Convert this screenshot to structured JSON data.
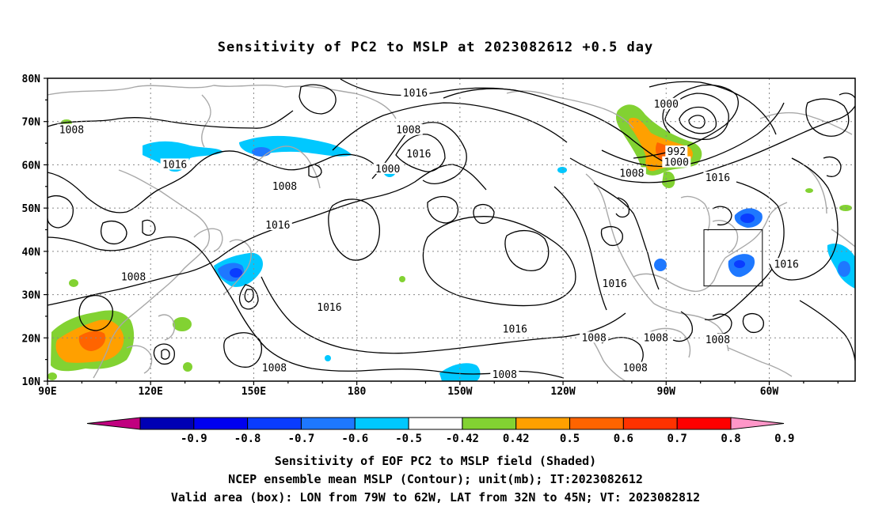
{
  "title": "Sensitivity of PC2 to MSLP at 2023082612 +0.5 day",
  "map": {
    "lat_labels": [
      "80N",
      "70N",
      "60N",
      "50N",
      "40N",
      "30N",
      "20N",
      "10N"
    ],
    "lon_labels": [
      "90E",
      "120E",
      "150E",
      "180",
      "150W",
      "120W",
      "90W",
      "60W"
    ],
    "contour_labels": [
      {
        "text": "1016",
        "lon": -163,
        "lat": 76.5
      },
      {
        "text": "1000",
        "lon": -90,
        "lat": 74
      },
      {
        "text": "1008",
        "lon": 97,
        "lat": 68
      },
      {
        "text": "1008",
        "lon": -165,
        "lat": 68
      },
      {
        "text": "1016",
        "lon": 127,
        "lat": 60
      },
      {
        "text": "1000",
        "lon": -171,
        "lat": 59
      },
      {
        "text": "1016",
        "lon": -162,
        "lat": 62.5
      },
      {
        "text": "992",
        "lon": -87,
        "lat": 63
      },
      {
        "text": "1000",
        "lon": -87,
        "lat": 60.5
      },
      {
        "text": "1008",
        "lon": -100,
        "lat": 58
      },
      {
        "text": "1008",
        "lon": 159,
        "lat": 55
      },
      {
        "text": "1016",
        "lon": -75,
        "lat": 57
      },
      {
        "text": "1016",
        "lon": 157,
        "lat": 46
      },
      {
        "text": "1008",
        "lon": 115,
        "lat": 34
      },
      {
        "text": "1016",
        "lon": -105,
        "lat": 32.5
      },
      {
        "text": "1016",
        "lon": -55,
        "lat": 37
      },
      {
        "text": "1016",
        "lon": 172,
        "lat": 27
      },
      {
        "text": "1016",
        "lon": -134,
        "lat": 22
      },
      {
        "text": "1008",
        "lon": -111,
        "lat": 20
      },
      {
        "text": "1008",
        "lon": -93,
        "lat": 20
      },
      {
        "text": "1008",
        "lon": -75,
        "lat": 19.5
      },
      {
        "text": "1008",
        "lon": 156,
        "lat": 13
      },
      {
        "text": "1008",
        "lon": -137,
        "lat": 11.5
      },
      {
        "text": "1008",
        "lon": -99,
        "lat": 13
      }
    ],
    "valid_box": {
      "lon_w": -79,
      "lon_e": -62,
      "lat_s": 32,
      "lat_n": 45
    }
  },
  "colorbar": {
    "labels": [
      "-0.9",
      "-0.8",
      "-0.7",
      "-0.6",
      "-0.5",
      "-0.42",
      "0.42",
      "0.5",
      "0.6",
      "0.7",
      "0.8",
      "0.9"
    ],
    "colors": [
      "#c0007f",
      "#0000b4",
      "#0000f0",
      "#0a3cff",
      "#1e78ff",
      "#00c8ff",
      "#ffffff",
      "#82d232",
      "#ffa000",
      "#ff6400",
      "#ff3200",
      "#ff0000",
      "#ff96c8"
    ]
  },
  "caption": {
    "line1": "Sensitivity of EOF PC2 to MSLP field (Shaded)",
    "line2": "NCEP ensemble mean MSLP (Contour); unit(mb); IT:2023082612",
    "line3": "Valid area (box): LON from 79W to 62W, LAT from 32N to 45N; VT: 2023082812"
  }
}
